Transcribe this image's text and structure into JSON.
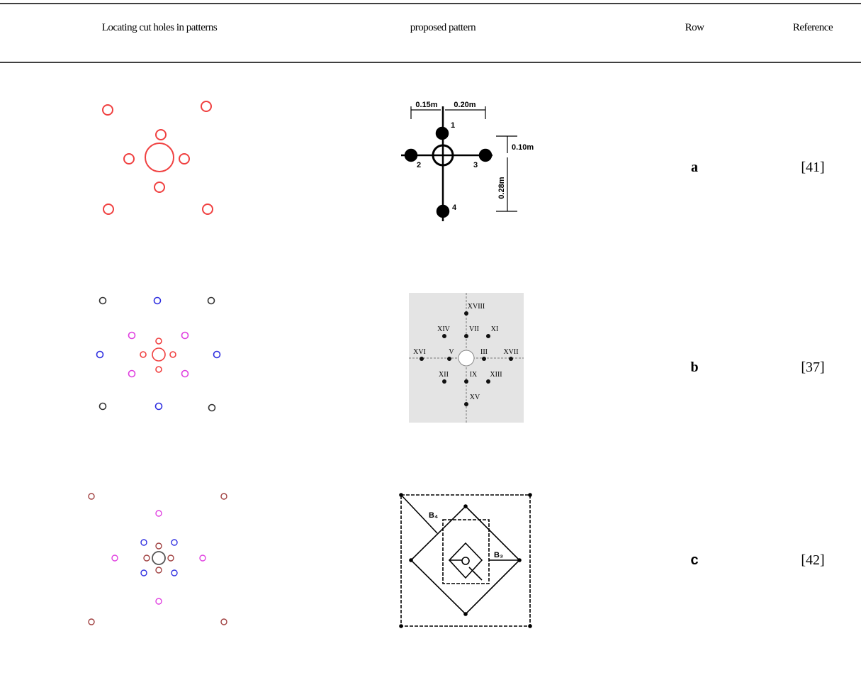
{
  "header": {
    "columns": [
      "Locating cut holes in patterns",
      "proposed pattern",
      "Row",
      "Reference"
    ]
  },
  "table": {
    "rows": [
      {
        "row": "a",
        "reference": "[41]",
        "figure": {
          "labels": [
            "0.15m",
            "0.20m",
            "1",
            "2",
            "3",
            "4",
            "0.10m",
            "0.28m"
          ]
        }
      },
      {
        "row": "b",
        "reference": "[37]",
        "figure": {
          "labels": [
            "XVIII",
            "XIV",
            "VII",
            "XI",
            "XVI",
            "V",
            "III",
            "XVII",
            "XII",
            "IX",
            "XIII",
            "XV"
          ]
        }
      },
      {
        "row": "c",
        "reference": "[42]",
        "figure": {
          "labels": [
            "B₄",
            "B₃"
          ]
        }
      }
    ]
  }
}
